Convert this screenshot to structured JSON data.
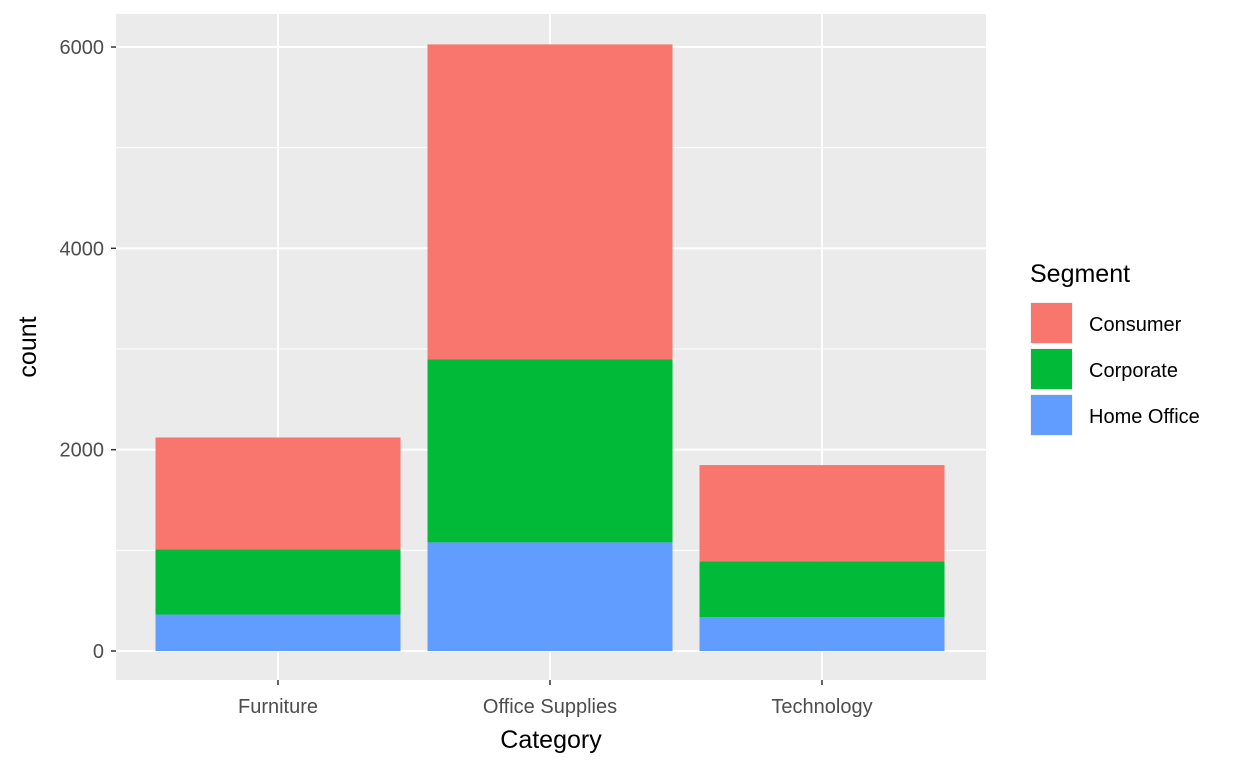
{
  "chart_data": {
    "type": "bar",
    "stacked": true,
    "title": "",
    "xlabel": "Category",
    "ylabel": "count",
    "categories": [
      "Furniture",
      "Office Supplies",
      "Technology"
    ],
    "series": [
      {
        "name": "Consumer",
        "color": "#F8766D",
        "values": [
          1113,
          3127,
          957
        ]
      },
      {
        "name": "Corporate",
        "color": "#00BA38",
        "values": [
          646,
          1820,
          554
        ]
      },
      {
        "name": "Home Office",
        "color": "#619CFF",
        "values": [
          362,
          1079,
          336
        ]
      }
    ],
    "stack_order_bottom_to_top": [
      "Home Office",
      "Corporate",
      "Consumer"
    ],
    "yticks": [
      0,
      2000,
      4000,
      6000
    ],
    "ylim": [
      -280,
      6320
    ],
    "grid": true,
    "panel_background": "#EBEBEB",
    "legend": {
      "title": "Segment",
      "placement": "right"
    }
  }
}
